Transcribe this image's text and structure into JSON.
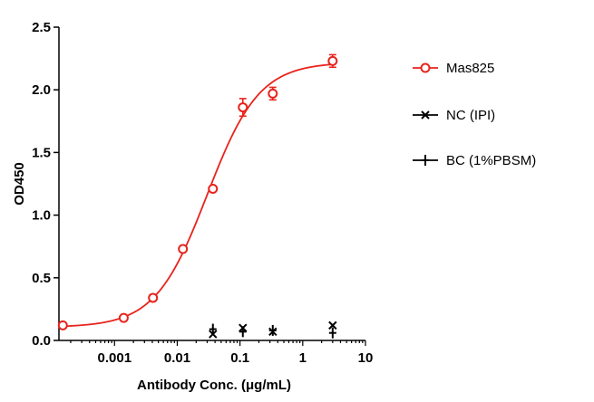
{
  "chart_data": {
    "type": "scatter",
    "xlabel": "Antibody Conc. (μg/mL)",
    "ylabel": "OD450",
    "x_scale": "log",
    "xlim": [
      0.00013,
      10
    ],
    "ylim": [
      0,
      2.5
    ],
    "x_ticks": [
      0.001,
      0.01,
      0.1,
      1,
      10
    ],
    "x_tick_labels": [
      "0.001",
      "0.01",
      "0.1",
      "1",
      "10"
    ],
    "y_ticks": [
      0,
      0.5,
      1.0,
      1.5,
      2.0,
      2.5
    ],
    "y_tick_labels": [
      "0.0",
      "0.5",
      "1.0",
      "1.5",
      "2.0",
      "2.5"
    ],
    "legend_position": "right",
    "series": [
      {
        "name": "Mas825",
        "marker": "circle",
        "color": "#e8231c",
        "fit_curve": true,
        "x": [
          0.00015,
          0.0014,
          0.0041,
          0.0123,
          0.037,
          0.111,
          0.333,
          3.0
        ],
        "y": [
          0.12,
          0.18,
          0.34,
          0.73,
          1.21,
          1.86,
          1.97,
          2.23
        ],
        "error": [
          0.0,
          0.01,
          0.01,
          0.01,
          0.01,
          0.07,
          0.05,
          0.05
        ]
      },
      {
        "name": "NC (IPI)",
        "marker": "x",
        "color": "#000000",
        "x": [
          0.037,
          0.111,
          0.333,
          3.0
        ],
        "y": [
          0.05,
          0.1,
          0.07,
          0.12
        ]
      },
      {
        "name": "BC (1%PBSM)",
        "marker": "plus",
        "color": "#000000",
        "x": [
          0.037,
          0.111,
          0.333,
          3.0
        ],
        "y": [
          0.09,
          0.07,
          0.08,
          0.06
        ]
      }
    ]
  }
}
